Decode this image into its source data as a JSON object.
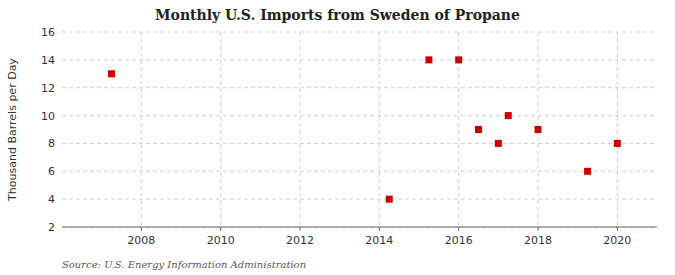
{
  "chart_data": {
    "type": "scatter",
    "title": "Monthly U.S. Imports from Sweden of Propane",
    "ylabel": "Thousand Barrels per Day",
    "source": "Source: U.S. Energy Information Administration",
    "x": [
      2007.25,
      2014.25,
      2015.25,
      2016.0,
      2016.5,
      2017.0,
      2017.25,
      2018.0,
      2019.25,
      2020.0
    ],
    "values": [
      13,
      4,
      14,
      14,
      9,
      8,
      10,
      9,
      6,
      8
    ],
    "color": "#cc0000",
    "marker": "square",
    "xlim": [
      2006.0,
      2021.0
    ],
    "ylim": [
      2,
      16
    ],
    "xticks": [
      2008,
      2010,
      2012,
      2014,
      2016,
      2018,
      2020
    ],
    "yticks": [
      2,
      4,
      6,
      8,
      10,
      12,
      14,
      16
    ],
    "grid": true
  }
}
